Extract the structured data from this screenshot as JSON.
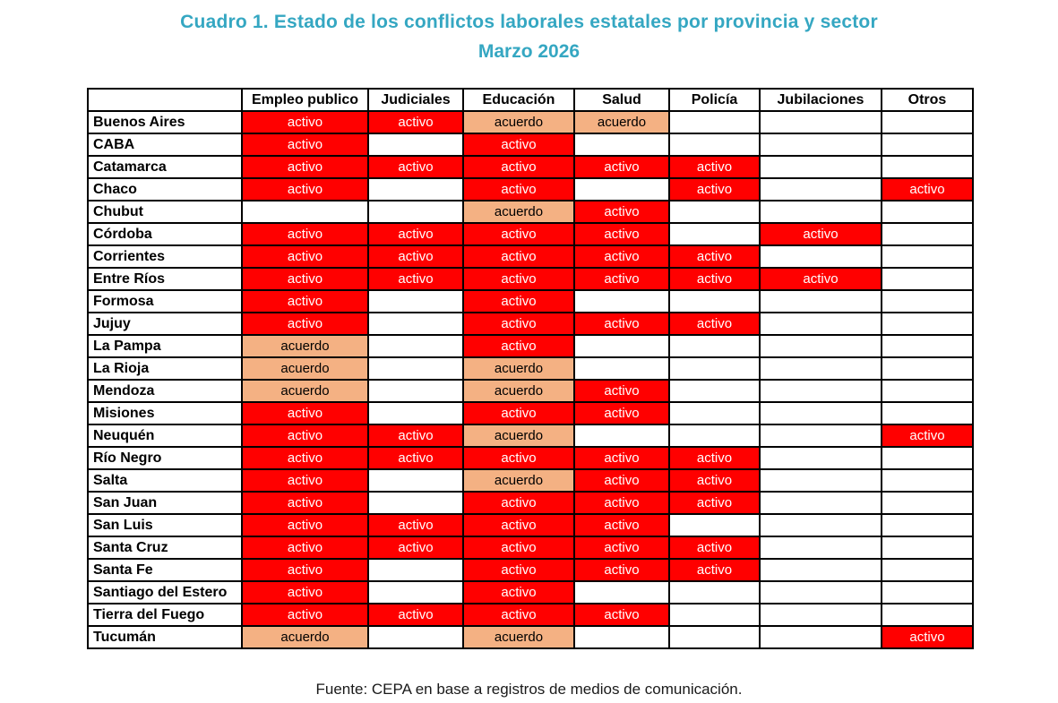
{
  "title": {
    "line1": "Cuadro 1. Estado de los conflictos laborales estatales por provincia y sector",
    "line2": "Marzo 2026"
  },
  "source": "Fuente: CEPA en base a registros de medios de comunicación.",
  "colors": {
    "title": "#35A7C2",
    "border": "#000000",
    "activo_bg": "#FF0000",
    "activo_text": "#FFFFFF",
    "acuerdo_bg": "#F4B183",
    "acuerdo_text": "#000000"
  },
  "chart_data": {
    "type": "table",
    "title": "Cuadro 1. Estado de los conflictos laborales estatales por provincia y sector",
    "subtitle": "Marzo 2026",
    "corner_label": "",
    "columns": [
      "Empleo publico",
      "Judiciales",
      "Educación",
      "Salud",
      "Policía",
      "Jubilaciones",
      "Otros"
    ],
    "cell_states": [
      "activo",
      "acuerdo",
      ""
    ],
    "rows": [
      {
        "province": "Buenos Aires",
        "cells": [
          "activo",
          "activo",
          "acuerdo",
          "acuerdo",
          "",
          "",
          ""
        ]
      },
      {
        "province": "CABA",
        "cells": [
          "activo",
          "",
          "activo",
          "",
          "",
          "",
          ""
        ]
      },
      {
        "province": "Catamarca",
        "cells": [
          "activo",
          "activo",
          "activo",
          "activo",
          "activo",
          "",
          ""
        ]
      },
      {
        "province": "Chaco",
        "cells": [
          "activo",
          "",
          "activo",
          "",
          "activo",
          "",
          "activo"
        ]
      },
      {
        "province": "Chubut",
        "cells": [
          "",
          "",
          "acuerdo",
          "activo",
          "",
          "",
          ""
        ]
      },
      {
        "province": "Córdoba",
        "cells": [
          "activo",
          "activo",
          "activo",
          "activo",
          "",
          "activo",
          ""
        ]
      },
      {
        "province": "Corrientes",
        "cells": [
          "activo",
          "activo",
          "activo",
          "activo",
          "activo",
          "",
          ""
        ]
      },
      {
        "province": "Entre Ríos",
        "cells": [
          "activo",
          "activo",
          "activo",
          "activo",
          "activo",
          "activo",
          ""
        ]
      },
      {
        "province": "Formosa",
        "cells": [
          "activo",
          "",
          "activo",
          "",
          "",
          "",
          ""
        ]
      },
      {
        "province": "Jujuy",
        "cells": [
          "activo",
          "",
          "activo",
          "activo",
          "activo",
          "",
          ""
        ]
      },
      {
        "province": "La Pampa",
        "cells": [
          "acuerdo",
          "",
          "activo",
          "",
          "",
          "",
          ""
        ]
      },
      {
        "province": "La Rioja",
        "cells": [
          "acuerdo",
          "",
          "acuerdo",
          "",
          "",
          "",
          ""
        ]
      },
      {
        "province": "Mendoza",
        "cells": [
          "acuerdo",
          "",
          "acuerdo",
          "activo",
          "",
          "",
          ""
        ]
      },
      {
        "province": "Misiones",
        "cells": [
          "activo",
          "",
          "activo",
          "activo",
          "",
          "",
          ""
        ]
      },
      {
        "province": "Neuquén",
        "cells": [
          "activo",
          "activo",
          "acuerdo",
          "",
          "",
          "",
          "activo"
        ]
      },
      {
        "province": "Río Negro",
        "cells": [
          "activo",
          "activo",
          "activo",
          "activo",
          "activo",
          "",
          ""
        ]
      },
      {
        "province": "Salta",
        "cells": [
          "activo",
          "",
          "acuerdo",
          "activo",
          "activo",
          "",
          ""
        ]
      },
      {
        "province": "San Juan",
        "cells": [
          "activo",
          "",
          "activo",
          "activo",
          "activo",
          "",
          ""
        ]
      },
      {
        "province": "San Luis",
        "cells": [
          "activo",
          "activo",
          "activo",
          "activo",
          "",
          "",
          ""
        ]
      },
      {
        "province": "Santa Cruz",
        "cells": [
          "activo",
          "activo",
          "activo",
          "activo",
          "activo",
          "",
          ""
        ]
      },
      {
        "province": "Santa Fe",
        "cells": [
          "activo",
          "",
          "activo",
          "activo",
          "activo",
          "",
          ""
        ]
      },
      {
        "province": "Santiago del Estero",
        "cells": [
          "activo",
          "",
          "activo",
          "",
          "",
          "",
          ""
        ]
      },
      {
        "province": "Tierra del Fuego",
        "cells": [
          "activo",
          "activo",
          "activo",
          "activo",
          "",
          "",
          ""
        ]
      },
      {
        "province": "Tucumán",
        "cells": [
          "acuerdo",
          "",
          "acuerdo",
          "",
          "",
          "",
          "activo"
        ]
      }
    ]
  }
}
